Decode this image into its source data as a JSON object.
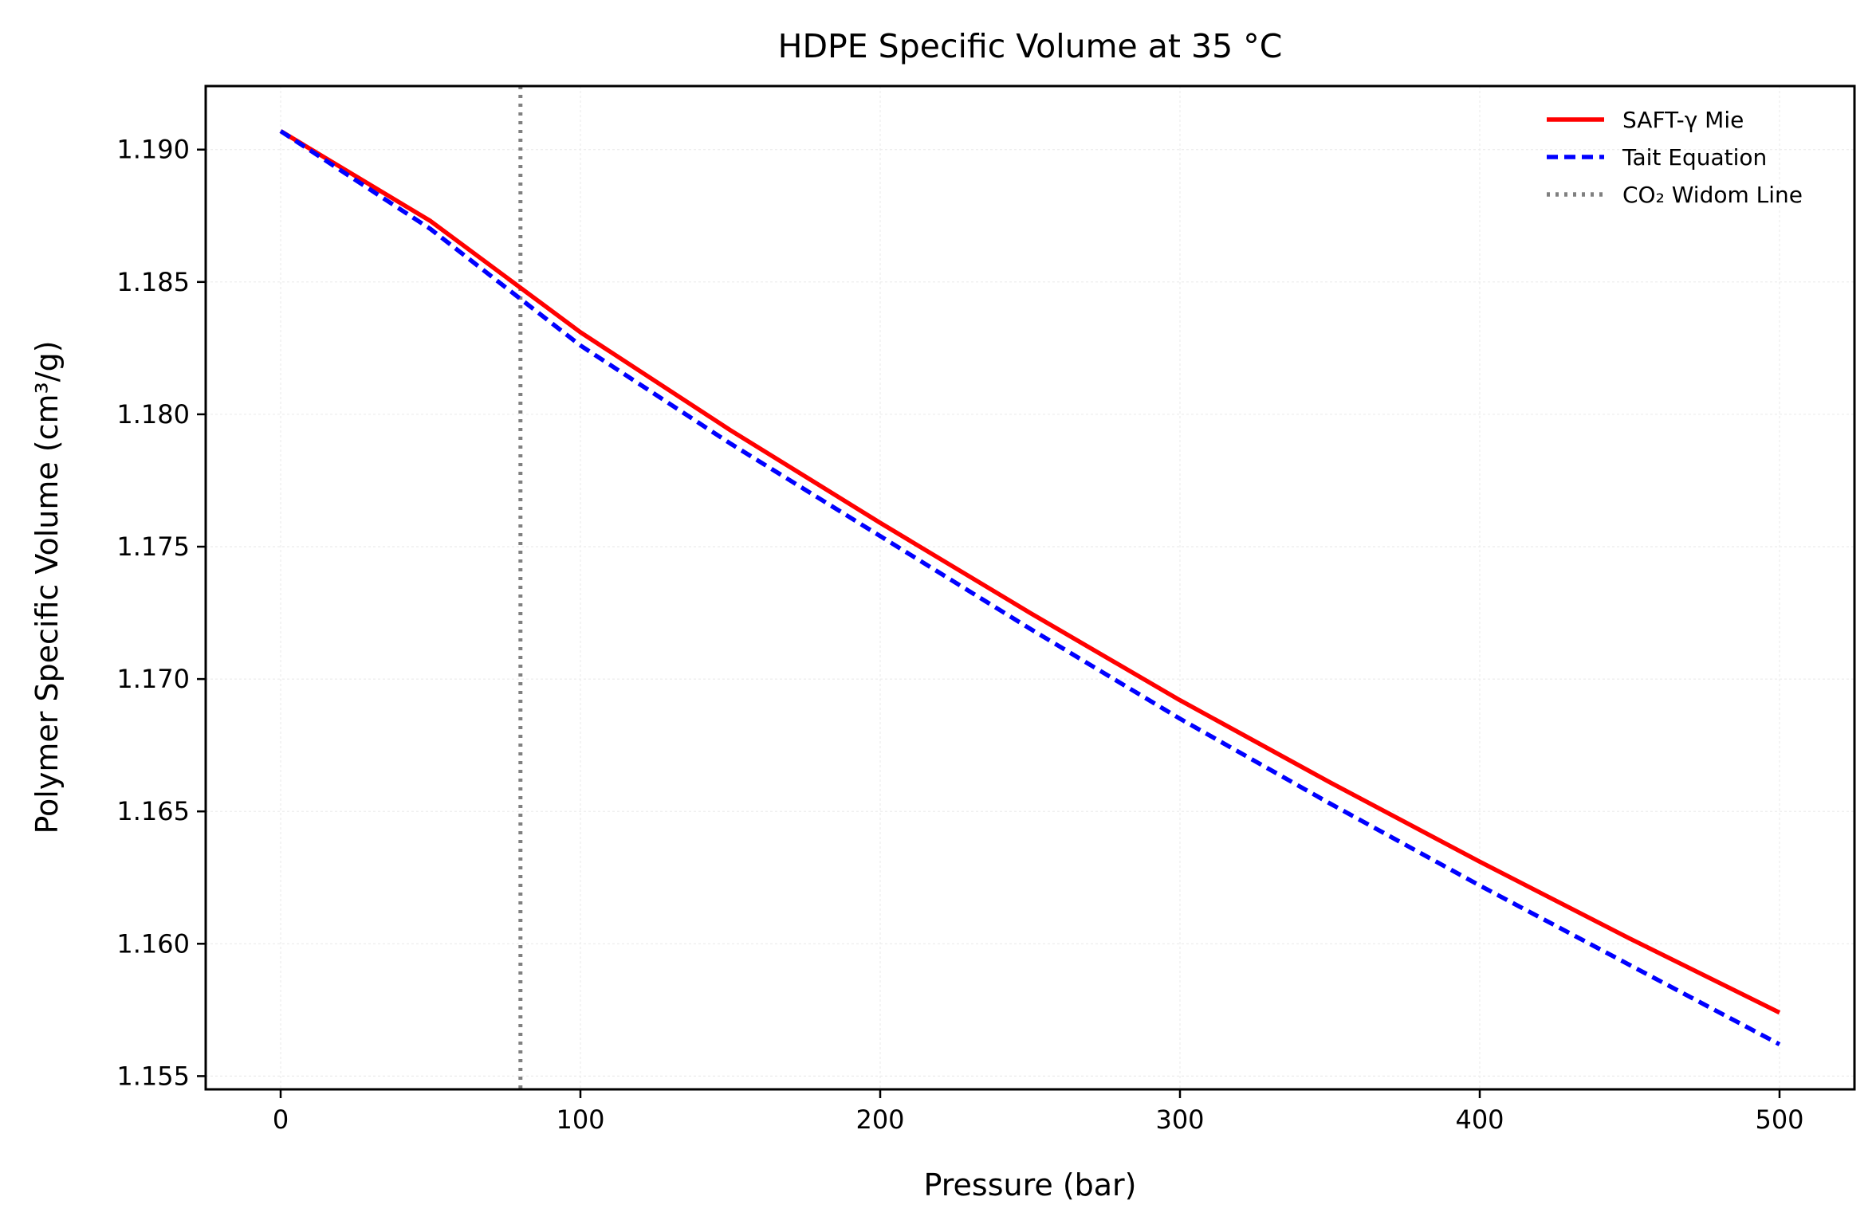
{
  "chart_data": {
    "type": "line",
    "title": "HDPE Specific Volume at 35 °C",
    "xlabel": "Pressure (bar)",
    "ylabel": "Polymer Specific Volume (cm³/g)",
    "xlim": [
      -25,
      525
    ],
    "ylim": [
      1.1545,
      1.1924
    ],
    "xticks": [
      0,
      100,
      200,
      300,
      400,
      500
    ],
    "xtick_labels": [
      "0",
      "100",
      "200",
      "300",
      "400",
      "500"
    ],
    "yticks": [
      1.155,
      1.16,
      1.165,
      1.17,
      1.175,
      1.18,
      1.185,
      1.19
    ],
    "ytick_labels": [
      "1.155",
      "1.160",
      "1.165",
      "1.170",
      "1.175",
      "1.180",
      "1.185",
      "1.190"
    ],
    "grid": true,
    "legend_position": "top-right",
    "x": [
      0,
      50,
      100,
      150,
      200,
      250,
      300,
      350,
      400,
      450,
      500
    ],
    "series": [
      {
        "name": "SAFT-γ Mie",
        "color": "#ff0000",
        "style": "solid",
        "values": [
          1.1907,
          1.1873,
          1.1831,
          1.1794,
          1.1759,
          1.1725,
          1.1692,
          1.1661,
          1.1631,
          1.1602,
          1.1574
        ]
      },
      {
        "name": "Tait Equation",
        "color": "#0000ff",
        "style": "dashed",
        "values": [
          1.1907,
          1.187,
          1.1826,
          1.1789,
          1.1754,
          1.1719,
          1.1685,
          1.1653,
          1.1622,
          1.1592,
          1.1562
        ]
      }
    ],
    "reference_lines": [
      {
        "name": "CO₂ Widom Line",
        "orientation": "vertical",
        "x": 80,
        "color": "#808080",
        "style": "dotted"
      }
    ]
  }
}
